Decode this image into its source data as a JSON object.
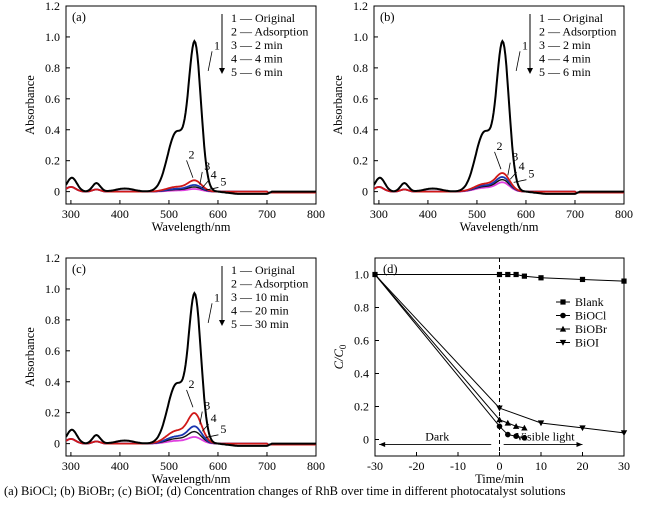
{
  "caption": "(a)  BiOCl; (b) BiOBr; (c) BiOI; (d) Concentration changes of RhB over time in different photocatalyst solutions",
  "colors": {
    "original": "#000000",
    "adsorption": "#d01818",
    "t1": "#1a35b0",
    "t2": "#111111",
    "t3": "#e040e0",
    "dashed_line": "#000000"
  },
  "chart_data": [
    {
      "id": "a",
      "type": "line",
      "panel_label": "(a)",
      "xlabel": "Wavelength/nm",
      "ylabel": "Absorbance",
      "xlim": [
        290,
        800
      ],
      "ylim": [
        -0.08,
        1.2
      ],
      "x_ticks": [
        300,
        400,
        500,
        600,
        700,
        800
      ],
      "y_ticks": [
        0,
        0.2,
        0.4,
        0.6,
        0.8,
        1.0,
        1.2
      ],
      "y_tick_labels": [
        "0",
        "0.2",
        "0.4",
        "0.6",
        "0.8",
        "1.0",
        "1.2"
      ],
      "legend": [
        "1 — Original",
        "2 — Adsorption",
        "3 — 2 min",
        "4 — 4 min",
        "5 — 6 min"
      ],
      "legend_placement": "top-right",
      "curve_labels": [
        "1",
        "2",
        "3",
        "4",
        "5"
      ],
      "series": [
        {
          "key": "original",
          "peak": 1.17
        },
        {
          "key": "adsorption",
          "peak": 0.085
        },
        {
          "key": "t1",
          "peak": 0.05
        },
        {
          "key": "t2",
          "peak": 0.035
        },
        {
          "key": "t3",
          "peak": 0.02
        }
      ]
    },
    {
      "id": "b",
      "type": "line",
      "panel_label": "(b)",
      "xlabel": "Wavelength/nm",
      "ylabel": "Absorbance",
      "xlim": [
        290,
        800
      ],
      "ylim": [
        -0.08,
        1.2
      ],
      "x_ticks": [
        300,
        400,
        500,
        600,
        700,
        800
      ],
      "y_ticks": [
        0,
        0.2,
        0.4,
        0.6,
        0.8,
        1.0,
        1.2
      ],
      "y_tick_labels": [
        "0",
        "0.2",
        "0.4",
        "0.6",
        "0.8",
        "1.0",
        "1.2"
      ],
      "legend": [
        "1 — Original",
        "2 — Adsorption",
        "3 — 2 min",
        "4 — 4 min",
        "5 — 6 min"
      ],
      "legend_placement": "top-right",
      "curve_labels": [
        "1",
        "2",
        "3",
        "4",
        "5"
      ],
      "series": [
        {
          "key": "original",
          "peak": 1.17
        },
        {
          "key": "adsorption",
          "peak": 0.14
        },
        {
          "key": "t1",
          "peak": 0.11
        },
        {
          "key": "t2",
          "peak": 0.09
        },
        {
          "key": "t3",
          "peak": 0.07
        }
      ]
    },
    {
      "id": "c",
      "type": "line",
      "panel_label": "(c)",
      "xlabel": "Wavelength/nm",
      "ylabel": "Absorbance",
      "xlim": [
        290,
        800
      ],
      "ylim": [
        -0.08,
        1.2
      ],
      "x_ticks": [
        300,
        400,
        500,
        600,
        700,
        800
      ],
      "y_ticks": [
        0,
        0.2,
        0.4,
        0.6,
        0.8,
        1.0,
        1.2
      ],
      "y_tick_labels": [
        "0",
        "0.2",
        "0.4",
        "0.6",
        "0.8",
        "1.0",
        "1.2"
      ],
      "legend": [
        "1 — Original",
        "2 — Adsorption",
        "3 — 10 min",
        "4 — 20 min",
        "5 — 30 min"
      ],
      "legend_placement": "top-right",
      "curve_labels": [
        "1",
        "2",
        "3",
        "4",
        "5"
      ],
      "series": [
        {
          "key": "original",
          "peak": 1.17
        },
        {
          "key": "adsorption",
          "peak": 0.23
        },
        {
          "key": "t1",
          "peak": 0.13
        },
        {
          "key": "t2",
          "peak": 0.09
        },
        {
          "key": "t3",
          "peak": 0.05
        }
      ]
    },
    {
      "id": "d",
      "type": "line",
      "panel_label": "(d)",
      "xlabel": "Time/min",
      "ylabel": "C/C0",
      "ylabel_main": "C/C",
      "ylabel_sub": "0",
      "xlim": [
        -30,
        30
      ],
      "ylim": [
        -0.1,
        1.1
      ],
      "x_ticks": [
        -30,
        -20,
        -10,
        0,
        10,
        20,
        30
      ],
      "y_ticks": [
        0,
        0.2,
        0.4,
        0.6,
        0.8,
        1.0
      ],
      "y_tick_labels": [
        "0",
        "0.2",
        "0.4",
        "0.6",
        "0.8",
        "1.0"
      ],
      "legend_placement": "right",
      "annotations": {
        "dark": "Dark",
        "visible": "Visible light"
      },
      "dark_arrow_x": [
        -2,
        -29
      ],
      "visible_arrow_x": [
        1,
        20
      ],
      "arrow_y": -0.03,
      "series": [
        {
          "name": "Blank",
          "marker": "square",
          "x": [
            -30,
            0,
            2,
            4,
            6,
            10,
            20,
            30
          ],
          "y": [
            1.0,
            1.0,
            1.0,
            1.0,
            0.99,
            0.98,
            0.97,
            0.96
          ]
        },
        {
          "name": "BiOCl",
          "marker": "circle",
          "x": [
            -30,
            0,
            2,
            4,
            6
          ],
          "y": [
            1.0,
            0.08,
            0.03,
            0.02,
            0.01
          ]
        },
        {
          "name": "BiOBr",
          "marker": "triangle-up",
          "x": [
            -30,
            0,
            2,
            4,
            6
          ],
          "y": [
            1.0,
            0.12,
            0.1,
            0.08,
            0.07
          ]
        },
        {
          "name": "BiOI",
          "marker": "triangle-down",
          "x": [
            -30,
            0,
            10,
            20,
            30
          ],
          "y": [
            1.0,
            0.19,
            0.1,
            0.07,
            0.04
          ]
        }
      ]
    }
  ]
}
